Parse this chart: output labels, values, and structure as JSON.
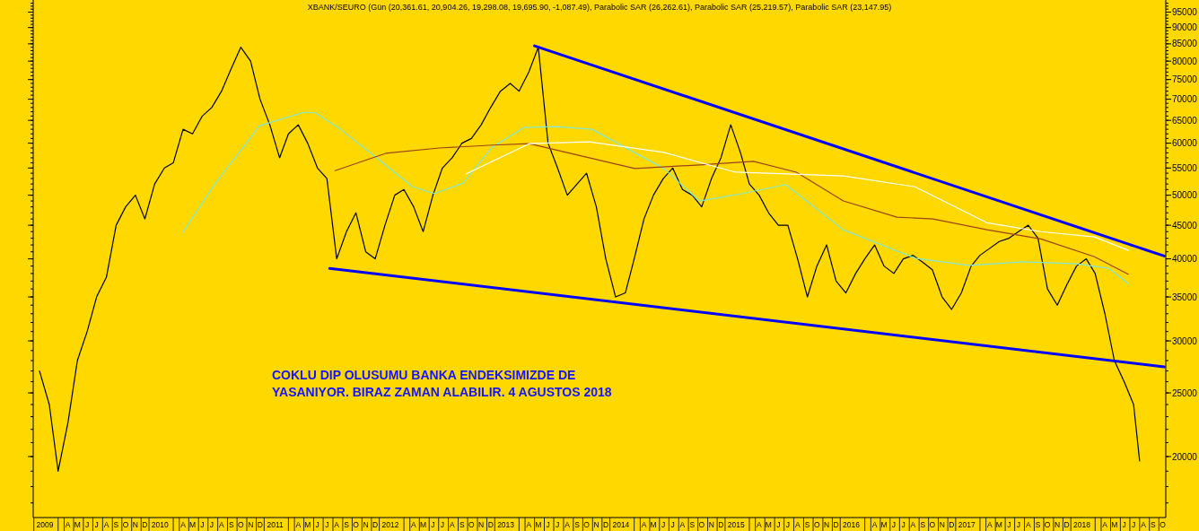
{
  "chart_data": {
    "type": "line",
    "title": "XBANK/SEURO (Gün (20,361.61, 20,904.26, 19,298.08, 19,695.90, -1,087.49), Parabolic SAR (26,262.61), Parabolic SAR (25,219.57), Parabolic SAR (23,147.95)",
    "annotations": [
      "COKLU DIP OLUSUMU BANKA ENDEKSIMIZDE DE",
      "YASANIYOR. BIRAZ ZAMAN ALABILIR. 4 AGUSTOS 2018"
    ],
    "log": true,
    "grid": false,
    "ylim": [
      16150,
      98500
    ],
    "yticks": [
      20000,
      25000,
      30000,
      35000,
      40000,
      45000,
      50000,
      55000,
      60000,
      65000,
      70000,
      75000,
      80000,
      85000,
      90000,
      95000
    ],
    "xlim": [
      "2008-12-26",
      "2018-10-25"
    ],
    "xticks": [
      {
        "value": "2009-02-01",
        "label": "2009"
      },
      {
        "value": "2009-03-15",
        "label": null
      },
      {
        "value": "2009-04-15",
        "label": "A"
      },
      {
        "value": "2009-05-15",
        "label": "M"
      },
      {
        "value": "2009-06-15",
        "label": "J"
      },
      {
        "value": "2009-07-15",
        "label": "J"
      },
      {
        "value": "2009-08-15",
        "label": "A"
      },
      {
        "value": "2009-09-15",
        "label": "S"
      },
      {
        "value": "2009-10-15",
        "label": "O"
      },
      {
        "value": "2009-11-15",
        "label": "N"
      },
      {
        "value": "2009-12-15",
        "label": "D"
      },
      {
        "value": "2010-02-01",
        "label": "2010"
      },
      {
        "value": "2010-03-15",
        "label": null
      },
      {
        "value": "2010-04-15",
        "label": "A"
      },
      {
        "value": "2010-05-15",
        "label": "M"
      },
      {
        "value": "2010-06-15",
        "label": "J"
      },
      {
        "value": "2010-07-15",
        "label": "J"
      },
      {
        "value": "2010-08-15",
        "label": "A"
      },
      {
        "value": "2010-09-15",
        "label": "S"
      },
      {
        "value": "2010-10-15",
        "label": "O"
      },
      {
        "value": "2010-11-15",
        "label": "N"
      },
      {
        "value": "2010-12-15",
        "label": "D"
      },
      {
        "value": "2011-02-01",
        "label": "2011"
      },
      {
        "value": "2011-03-15",
        "label": null
      },
      {
        "value": "2011-04-15",
        "label": "A"
      },
      {
        "value": "2011-05-15",
        "label": "M"
      },
      {
        "value": "2011-06-15",
        "label": "J"
      },
      {
        "value": "2011-07-15",
        "label": "J"
      },
      {
        "value": "2011-08-15",
        "label": "A"
      },
      {
        "value": "2011-09-15",
        "label": "S"
      },
      {
        "value": "2011-10-15",
        "label": "O"
      },
      {
        "value": "2011-11-15",
        "label": "N"
      },
      {
        "value": "2011-12-15",
        "label": "D"
      },
      {
        "value": "2012-02-01",
        "label": "2012"
      },
      {
        "value": "2012-03-15",
        "label": null
      },
      {
        "value": "2012-04-15",
        "label": "A"
      },
      {
        "value": "2012-05-15",
        "label": "M"
      },
      {
        "value": "2012-06-15",
        "label": "J"
      },
      {
        "value": "2012-07-15",
        "label": "J"
      },
      {
        "value": "2012-08-15",
        "label": "A"
      },
      {
        "value": "2012-09-15",
        "label": "S"
      },
      {
        "value": "2012-10-15",
        "label": "O"
      },
      {
        "value": "2012-11-15",
        "label": "N"
      },
      {
        "value": "2012-12-15",
        "label": "D"
      },
      {
        "value": "2013-02-01",
        "label": "2013"
      },
      {
        "value": "2013-03-15",
        "label": null
      },
      {
        "value": "2013-04-15",
        "label": "A"
      },
      {
        "value": "2013-05-15",
        "label": "M"
      },
      {
        "value": "2013-06-15",
        "label": "J"
      },
      {
        "value": "2013-07-15",
        "label": "J"
      },
      {
        "value": "2013-08-15",
        "label": "A"
      },
      {
        "value": "2013-09-15",
        "label": "S"
      },
      {
        "value": "2013-10-15",
        "label": "O"
      },
      {
        "value": "2013-11-15",
        "label": "N"
      },
      {
        "value": "2013-12-15",
        "label": "D"
      },
      {
        "value": "2014-02-01",
        "label": "2014"
      },
      {
        "value": "2014-03-15",
        "label": null
      },
      {
        "value": "2014-04-15",
        "label": "A"
      },
      {
        "value": "2014-05-15",
        "label": "M"
      },
      {
        "value": "2014-06-15",
        "label": "J"
      },
      {
        "value": "2014-07-15",
        "label": "J"
      },
      {
        "value": "2014-08-15",
        "label": "A"
      },
      {
        "value": "2014-09-15",
        "label": "S"
      },
      {
        "value": "2014-10-15",
        "label": "O"
      },
      {
        "value": "2014-11-15",
        "label": "N"
      },
      {
        "value": "2014-12-15",
        "label": "D"
      },
      {
        "value": "2015-02-01",
        "label": "2015"
      },
      {
        "value": "2015-03-15",
        "label": null
      },
      {
        "value": "2015-04-15",
        "label": "A"
      },
      {
        "value": "2015-05-15",
        "label": "M"
      },
      {
        "value": "2015-06-15",
        "label": "J"
      },
      {
        "value": "2015-07-15",
        "label": "J"
      },
      {
        "value": "2015-08-15",
        "label": "A"
      },
      {
        "value": "2015-09-15",
        "label": "S"
      },
      {
        "value": "2015-10-15",
        "label": "O"
      },
      {
        "value": "2015-11-15",
        "label": "N"
      },
      {
        "value": "2015-12-15",
        "label": "D"
      },
      {
        "value": "2016-02-01",
        "label": "2016"
      },
      {
        "value": "2016-03-15",
        "label": null
      },
      {
        "value": "2016-04-15",
        "label": "A"
      },
      {
        "value": "2016-05-15",
        "label": "M"
      },
      {
        "value": "2016-06-15",
        "label": "J"
      },
      {
        "value": "2016-07-15",
        "label": "J"
      },
      {
        "value": "2016-08-15",
        "label": "A"
      },
      {
        "value": "2016-09-15",
        "label": "S"
      },
      {
        "value": "2016-10-15",
        "label": "O"
      },
      {
        "value": "2016-11-15",
        "label": "N"
      },
      {
        "value": "2016-12-15",
        "label": "D"
      },
      {
        "value": "2017-02-01",
        "label": "2017"
      },
      {
        "value": "2017-03-15",
        "label": null
      },
      {
        "value": "2017-04-15",
        "label": "A"
      },
      {
        "value": "2017-05-15",
        "label": "M"
      },
      {
        "value": "2017-06-15",
        "label": "J"
      },
      {
        "value": "2017-07-15",
        "label": "J"
      },
      {
        "value": "2017-08-15",
        "label": "A"
      },
      {
        "value": "2017-09-15",
        "label": "S"
      },
      {
        "value": "2017-10-15",
        "label": "O"
      },
      {
        "value": "2017-11-15",
        "label": "N"
      },
      {
        "value": "2017-12-15",
        "label": "D"
      },
      {
        "value": "2018-02-01",
        "label": "2018"
      },
      {
        "value": "2018-03-15",
        "label": null
      },
      {
        "value": "2018-04-15",
        "label": "A"
      },
      {
        "value": "2018-05-15",
        "label": "M"
      },
      {
        "value": "2018-06-15",
        "label": "J"
      },
      {
        "value": "2018-07-15",
        "label": "J"
      },
      {
        "value": "2018-08-15",
        "label": "A"
      },
      {
        "value": "2018-09-15",
        "label": "S"
      },
      {
        "value": "2018-10-15",
        "label": "O"
      }
    ],
    "series": [
      {
        "color": "#000000",
        "x": [
          "2009-01-15",
          "2009-02-15",
          "2009-03-15",
          "2009-04-15",
          "2009-05-15",
          "2009-06-15",
          "2009-07-15",
          "2009-08-15",
          "2009-09-15",
          "2009-10-15",
          "2009-11-15",
          "2009-12-15",
          "2010-01-15",
          "2010-02-15",
          "2010-03-15",
          "2010-04-15",
          "2010-05-15",
          "2010-06-15",
          "2010-07-15",
          "2010-08-15",
          "2010-09-15",
          "2010-10-15",
          "2010-11-15",
          "2010-12-15",
          "2011-01-15",
          "2011-02-15",
          "2011-03-15",
          "2011-04-15",
          "2011-05-15",
          "2011-06-15",
          "2011-07-15",
          "2011-08-15",
          "2011-09-15",
          "2011-10-15",
          "2011-11-15",
          "2011-12-15",
          "2012-01-15",
          "2012-02-15",
          "2012-03-15",
          "2012-04-15",
          "2012-05-15",
          "2012-06-15",
          "2012-07-15",
          "2012-08-15",
          "2012-09-15",
          "2012-10-15",
          "2012-11-15",
          "2012-12-15",
          "2013-01-15",
          "2013-02-15",
          "2013-03-15",
          "2013-04-15",
          "2013-05-15",
          "2013-06-15",
          "2013-07-15",
          "2013-08-15",
          "2013-09-15",
          "2013-10-15",
          "2013-11-15",
          "2013-12-15",
          "2014-01-15",
          "2014-02-15",
          "2014-03-15",
          "2014-04-15",
          "2014-05-15",
          "2014-06-15",
          "2014-07-15",
          "2014-08-15",
          "2014-09-15",
          "2014-10-15",
          "2014-11-15",
          "2014-12-15",
          "2015-01-15",
          "2015-02-15",
          "2015-03-15",
          "2015-04-15",
          "2015-05-15",
          "2015-06-15",
          "2015-07-15",
          "2015-08-15",
          "2015-09-15",
          "2015-10-15",
          "2015-11-15",
          "2015-12-15",
          "2016-01-15",
          "2016-02-15",
          "2016-03-15",
          "2016-04-15",
          "2016-05-15",
          "2016-06-15",
          "2016-07-15",
          "2016-08-15",
          "2016-09-15",
          "2016-10-15",
          "2016-11-15",
          "2016-12-15",
          "2017-01-15",
          "2017-02-15",
          "2017-03-15",
          "2017-04-15",
          "2017-05-15",
          "2017-06-15",
          "2017-07-15",
          "2017-08-15",
          "2017-09-15",
          "2017-10-15",
          "2017-11-15",
          "2017-12-15",
          "2018-01-15",
          "2018-02-15",
          "2018-03-15",
          "2018-04-15",
          "2018-05-15",
          "2018-06-15",
          "2018-07-15",
          "2018-08-03"
        ],
        "values": [
          27000,
          24000,
          19000,
          22500,
          28000,
          31000,
          35000,
          37500,
          45000,
          48000,
          50000,
          46000,
          52000,
          55000,
          56000,
          63000,
          62000,
          66000,
          68000,
          72000,
          78000,
          84000,
          80000,
          70000,
          64000,
          57000,
          62000,
          64000,
          60000,
          55000,
          53000,
          40000,
          44000,
          47000,
          41000,
          40000,
          45000,
          50000,
          51000,
          48000,
          44000,
          50000,
          55000,
          57000,
          60000,
          61000,
          64000,
          68000,
          72000,
          74000,
          72000,
          77000,
          84000,
          60000,
          55000,
          50000,
          52000,
          54000,
          48000,
          40000,
          35000,
          35500,
          40000,
          46000,
          50000,
          53000,
          55000,
          51000,
          50000,
          48000,
          53000,
          57000,
          64000,
          58000,
          52000,
          50000,
          47000,
          45000,
          45000,
          40000,
          35000,
          39000,
          42000,
          37000,
          35500,
          38000,
          40000,
          42000,
          39000,
          38000,
          40000,
          40500,
          39500,
          38500,
          35000,
          33500,
          35500,
          39000,
          40500,
          41500,
          42500,
          43000,
          44000,
          45000,
          43000,
          36000,
          34000,
          36500,
          39000,
          40000,
          38000,
          33000,
          28000,
          26000,
          24000,
          19700
        ]
      },
      {
        "color": "#7fe8d8",
        "x": [
          "2010-04-16",
          "2010-07-25",
          "2010-12-14",
          "2011-05-05",
          "2011-06-10",
          "2011-08-27",
          "2011-12-20",
          "2012-04-12",
          "2012-06-20",
          "2012-09-20",
          "2012-12-20",
          "2013-04-01",
          "2013-07-10",
          "2013-11-01",
          "2014-06-17",
          "2014-10-08",
          "2015-02-22",
          "2015-07-08",
          "2016-01-07",
          "2016-08-21",
          "2017-02-08",
          "2017-07-29",
          "2018-01-16",
          "2018-04-27",
          "2018-06-28"
        ],
        "values": [
          44000,
          52000,
          63800,
          66900,
          66700,
          63000,
          57000,
          51500,
          50300,
          52200,
          59200,
          63400,
          63600,
          63000,
          54900,
          49000,
          50300,
          51900,
          44300,
          40100,
          39100,
          39600,
          39300,
          38700,
          36700
        ]
      },
      {
        "color": "#a0401c",
        "x": [
          "2011-08-10",
          "2012-01-17",
          "2012-07-05",
          "2012-12-23",
          "2013-04-16",
          "2013-10-23",
          "2014-03-17",
          "2014-10-08",
          "2015-03-28",
          "2015-08-11",
          "2016-01-07",
          "2016-06-25",
          "2016-10-17",
          "2017-04-06",
          "2017-09-24",
          "2018-03-13",
          "2018-06-28"
        ],
        "values": [
          54500,
          57900,
          59000,
          59600,
          59900,
          57000,
          54900,
          55600,
          56300,
          54200,
          49000,
          46300,
          46000,
          44300,
          42900,
          40300,
          37900
        ]
      },
      {
        "color": "#ffffff",
        "x": [
          "2012-09-29",
          "2013-04-16",
          "2013-10-23",
          "2014-06-17",
          "2015-01-30",
          "2016-01-07",
          "2016-08-21",
          "2017-04-06",
          "2017-09-24",
          "2018-03-13",
          "2018-06-28"
        ],
        "values": [
          53900,
          59900,
          60300,
          58100,
          54200,
          53500,
          51500,
          45400,
          44000,
          43200,
          41200
        ]
      },
      {
        "color": "#0000ff",
        "x": [
          "2013-05-03",
          "2018-10-20"
        ],
        "values": [
          84400,
          40400
        ]
      },
      {
        "color": "#0000ff",
        "x": [
          "2011-07-24",
          "2018-10-20"
        ],
        "values": [
          38680,
          27390
        ]
      }
    ]
  }
}
